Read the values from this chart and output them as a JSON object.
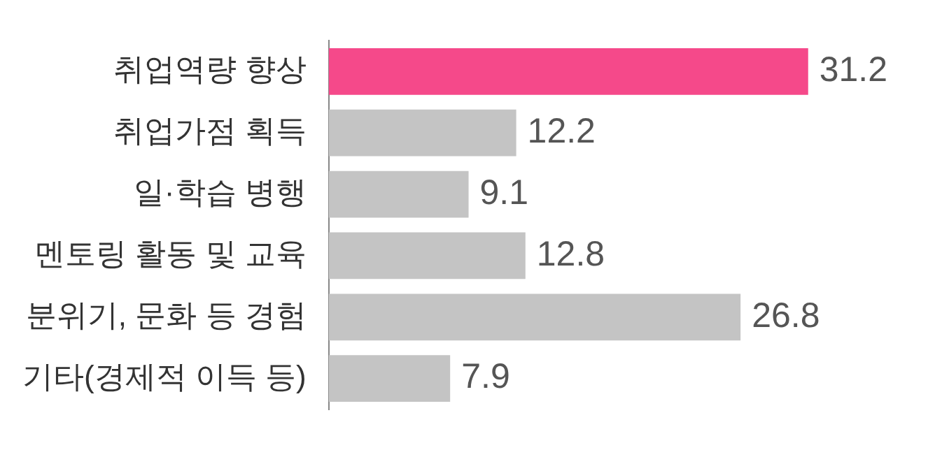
{
  "chart_data": {
    "type": "bar",
    "orientation": "horizontal",
    "categories": [
      "취업역량 향상",
      "취업가점 획득",
      "일·학습 병행",
      "멘토링 활동 및 교육",
      "분위기, 문화 등 경험",
      "기타(경제적 이득 등)"
    ],
    "values": [
      31.2,
      12.2,
      9.1,
      12.8,
      26.8,
      7.9
    ],
    "colors": [
      "#f5498a",
      "#c4c4c4",
      "#c4c4c4",
      "#c4c4c4",
      "#c4c4c4",
      "#c4c4c4"
    ],
    "data_labels": true
  }
}
